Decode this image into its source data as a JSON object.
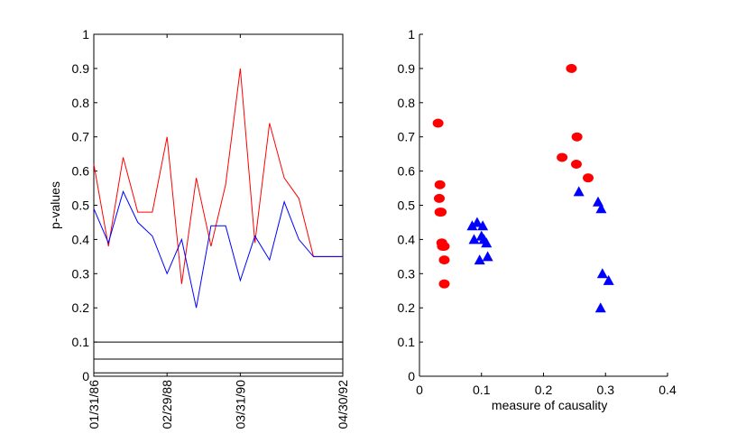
{
  "chart_data": [
    {
      "type": "line",
      "title": "",
      "xlabel": "",
      "ylabel": "p-values",
      "ylim": [
        0,
        1
      ],
      "yticks": [
        0,
        0.1,
        0.2,
        0.3,
        0.4,
        0.5,
        0.6,
        0.7,
        0.8,
        0.9,
        1
      ],
      "ytick_labels": [
        "0",
        "0.1",
        "0.2",
        "0.3",
        "0.4",
        "0.5",
        "0.6",
        "0.7",
        "0.8",
        "0.9",
        "1"
      ],
      "xlim": [
        0,
        17
      ],
      "xticks": [
        0,
        5,
        10,
        17
      ],
      "xtick_labels": [
        "01/31/86",
        "02/29/88",
        "03/31/90",
        "04/30/92"
      ],
      "reference_lines": [
        0.1,
        0.05,
        0.01
      ],
      "series": [
        {
          "name": "red",
          "color": "#ff0000",
          "x": [
            0,
            1,
            2,
            3,
            4,
            5,
            6,
            7,
            8,
            9,
            10,
            11,
            12,
            13,
            14,
            15,
            16,
            17
          ],
          "values": [
            0.62,
            0.38,
            0.64,
            0.48,
            0.48,
            0.7,
            0.27,
            0.58,
            0.38,
            0.56,
            0.9,
            0.39,
            0.74,
            0.58,
            0.52,
            0.35,
            0.35,
            0.35
          ]
        },
        {
          "name": "blue",
          "color": "#0000ff",
          "x": [
            0,
            1,
            2,
            3,
            4,
            5,
            6,
            7,
            8,
            9,
            10,
            11,
            12,
            13,
            14,
            15,
            16,
            17
          ],
          "values": [
            0.49,
            0.39,
            0.54,
            0.45,
            0.41,
            0.3,
            0.4,
            0.2,
            0.44,
            0.44,
            0.28,
            0.41,
            0.34,
            0.51,
            0.4,
            0.35,
            0.35,
            0.35
          ]
        }
      ]
    },
    {
      "type": "scatter",
      "title": "",
      "xlabel": "measure of causality",
      "ylabel": "",
      "xlim": [
        0,
        0.4
      ],
      "ylim": [
        0,
        1
      ],
      "xticks": [
        0,
        0.1,
        0.2,
        0.3,
        0.4
      ],
      "xtick_labels": [
        "0",
        "0.1",
        "0.2",
        "0.3",
        "0.4"
      ],
      "yticks": [
        0,
        0.1,
        0.2,
        0.3,
        0.4,
        0.5,
        0.6,
        0.7,
        0.8,
        0.9,
        1
      ],
      "ytick_labels": [
        "0",
        "0.1",
        "0.2",
        "0.3",
        "0.4",
        "0.5",
        "0.6",
        "0.7",
        "0.8",
        "0.9",
        "1"
      ],
      "series": [
        {
          "name": "red circles",
          "marker": "circle",
          "color": "#ff0000",
          "points": [
            [
              0.03,
              0.74
            ],
            [
              0.033,
              0.56
            ],
            [
              0.032,
              0.52
            ],
            [
              0.035,
              0.48
            ],
            [
              0.033,
              0.48
            ],
            [
              0.036,
              0.39
            ],
            [
              0.04,
              0.38
            ],
            [
              0.037,
              0.38
            ],
            [
              0.04,
              0.34
            ],
            [
              0.04,
              0.27
            ],
            [
              0.245,
              0.9
            ],
            [
              0.254,
              0.7
            ],
            [
              0.23,
              0.64
            ],
            [
              0.253,
              0.62
            ],
            [
              0.272,
              0.58
            ]
          ]
        },
        {
          "name": "blue triangles",
          "marker": "triangle",
          "color": "#0000ff",
          "points": [
            [
              0.085,
              0.44
            ],
            [
              0.093,
              0.45
            ],
            [
              0.102,
              0.44
            ],
            [
              0.088,
              0.4
            ],
            [
              0.1,
              0.41
            ],
            [
              0.104,
              0.4
            ],
            [
              0.108,
              0.39
            ],
            [
              0.097,
              0.34
            ],
            [
              0.11,
              0.35
            ],
            [
              0.257,
              0.54
            ],
            [
              0.288,
              0.51
            ],
            [
              0.293,
              0.49
            ],
            [
              0.295,
              0.3
            ],
            [
              0.305,
              0.28
            ],
            [
              0.292,
              0.2
            ]
          ]
        }
      ]
    }
  ]
}
